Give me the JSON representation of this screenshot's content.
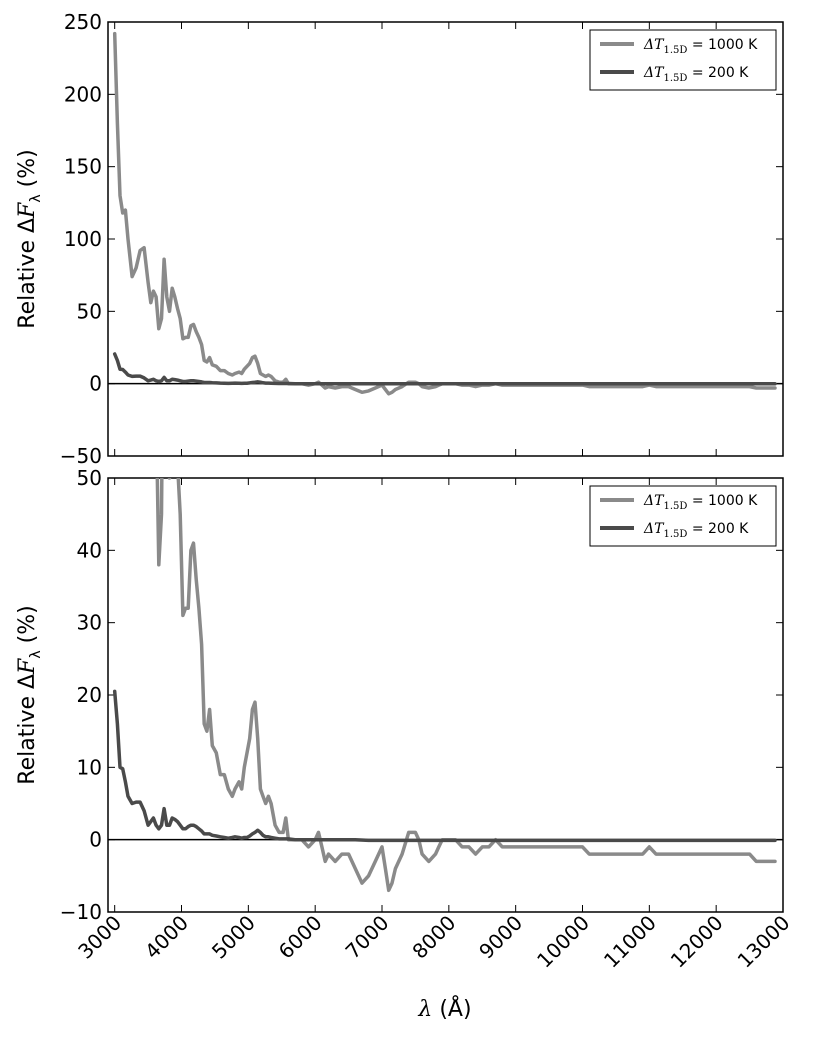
{
  "colors": {
    "series_1000": "#8a8a8a",
    "series_200": "#4a4a4a",
    "zero_line": "#000000"
  },
  "chart_data": [
    {
      "type": "line",
      "panel": "top",
      "ylabel": "Relative ΔFλ (%)",
      "xlabel": "",
      "xlim": [
        2900,
        13000
      ],
      "ylim": [
        -50,
        250
      ],
      "yticks": [
        -50,
        0,
        50,
        100,
        150,
        200,
        250
      ],
      "legend_position": "top-right",
      "series": [
        {
          "name": "ΔT1.5D = 1000 K",
          "values_x": [
            3000,
            3040,
            3080,
            3120,
            3160,
            3200,
            3260,
            3320,
            3380,
            3440,
            3500,
            3540,
            3580,
            3620,
            3660,
            3700,
            3740,
            3780,
            3820,
            3860,
            3900,
            3940,
            3980,
            4020,
            4060,
            4100,
            4140,
            4180,
            4220,
            4260,
            4300,
            4340,
            4380,
            4420,
            4460,
            4520,
            4580,
            4640,
            4700,
            4760,
            4800,
            4860,
            4900,
            4940,
            4980,
            5020,
            5060,
            5100,
            5140,
            5180,
            5220,
            5260,
            5300,
            5340,
            5400,
            5460,
            5520,
            5560,
            5600,
            5700,
            5800,
            5900,
            6000,
            6050,
            6100,
            6150,
            6200,
            6300,
            6400,
            6500,
            6600,
            6700,
            6800,
            6900,
            7000,
            7050,
            7100,
            7150,
            7200,
            7300,
            7400,
            7500,
            7550,
            7600,
            7700,
            7800,
            7850,
            7900,
            8000,
            8100,
            8200,
            8300,
            8400,
            8500,
            8600,
            8700,
            8800,
            8900,
            9000,
            9100,
            9200,
            9300,
            9400,
            9500,
            9600,
            9700,
            9800,
            9900,
            10000,
            10100,
            10200,
            10300,
            10400,
            10500,
            10600,
            10700,
            10800,
            10900,
            11000,
            11100,
            11200,
            11300,
            11400,
            11500,
            11600,
            11700,
            11800,
            11900,
            12000,
            12100,
            12200,
            12300,
            12400,
            12500,
            12600,
            12700,
            12800,
            12880
          ],
          "values_y": [
            242,
            180,
            130,
            118,
            120,
            100,
            74,
            80,
            92,
            94,
            70,
            56,
            64,
            60,
            38,
            45,
            86,
            60,
            50,
            66,
            60,
            52,
            45,
            31,
            32,
            32,
            40,
            41,
            36,
            32,
            27,
            16,
            15,
            18,
            13,
            12,
            9,
            9,
            7,
            6,
            7,
            8,
            7,
            10,
            12,
            14,
            18,
            19,
            14,
            7,
            6,
            5,
            6,
            5,
            2,
            1,
            1,
            3,
            0,
            0,
            0,
            -1,
            0,
            1,
            -1,
            -3,
            -2,
            -3,
            -2,
            -2,
            -4,
            -6,
            -5,
            -3,
            -1,
            -4,
            -7,
            -6,
            -4,
            -2,
            1,
            1,
            0,
            -2,
            -3,
            -2,
            -1,
            0,
            0,
            0,
            -1,
            -1,
            -2,
            -1,
            -1,
            0,
            -1,
            -1,
            -1,
            -1,
            -1,
            -1,
            -1,
            -1,
            -1,
            -1,
            -1,
            -1,
            -1,
            -2,
            -2,
            -2,
            -2,
            -2,
            -2,
            -2,
            -2,
            -2,
            -1,
            -2,
            -2,
            -2,
            -2,
            -2,
            -2,
            -2,
            -2,
            -2,
            -2,
            -2,
            -2,
            -2,
            -2,
            -2,
            -3,
            -3,
            -3,
            -3
          ]
        },
        {
          "name": "ΔT1.5D = 200 K",
          "values_x": [
            3000,
            3040,
            3080,
            3120,
            3160,
            3200,
            3260,
            3320,
            3380,
            3440,
            3500,
            3540,
            3580,
            3620,
            3660,
            3700,
            3740,
            3780,
            3820,
            3860,
            3900,
            3940,
            3980,
            4020,
            4060,
            4100,
            4140,
            4180,
            4220,
            4260,
            4300,
            4340,
            4380,
            4420,
            4460,
            4520,
            4580,
            4640,
            4700,
            4760,
            4800,
            4860,
            4900,
            4940,
            4980,
            5020,
            5060,
            5100,
            5140,
            5180,
            5220,
            5260,
            5300,
            5340,
            5400,
            5460,
            5520,
            5560,
            5600,
            5700,
            5800,
            5900,
            6000,
            6100,
            6200,
            6400,
            6600,
            6800,
            7000,
            7200,
            7400,
            7600,
            7800,
            8000,
            8500,
            9000,
            9500,
            10000,
            10500,
            11000,
            11500,
            12000,
            12500,
            12880
          ],
          "values_y": [
            20.5,
            16,
            10,
            9.8,
            8,
            6,
            5,
            5.2,
            5.2,
            4,
            2,
            2.5,
            3,
            2,
            1.5,
            2,
            4.3,
            2,
            2,
            3,
            2.8,
            2.5,
            2,
            1.5,
            1.5,
            1.8,
            2,
            2,
            1.8,
            1.5,
            1.2,
            0.8,
            0.8,
            0.8,
            0.6,
            0.5,
            0.4,
            0.3,
            0.2,
            0.3,
            0.4,
            0.3,
            0.2,
            0.3,
            0.3,
            0.5,
            0.8,
            1,
            1.3,
            1,
            0.6,
            0.4,
            0.4,
            0.3,
            0.2,
            0.1,
            0.1,
            0.1,
            0.1,
            0,
            0,
            0,
            0,
            0,
            0,
            0,
            0,
            -0.1,
            -0.1,
            -0.1,
            -0.1,
            -0.1,
            -0.1,
            -0.1,
            -0.1,
            -0.1,
            -0.1,
            -0.1,
            -0.1,
            -0.1,
            -0.1,
            -0.1,
            -0.1,
            -0.1
          ]
        }
      ]
    },
    {
      "type": "line",
      "panel": "bottom",
      "ylabel": "Relative ΔFλ (%)",
      "xlabel": "λ (Å)",
      "xlim": [
        2900,
        13000
      ],
      "ylim": [
        -10,
        50
      ],
      "yticks": [
        -10,
        0,
        10,
        20,
        30,
        40,
        50
      ],
      "xticks": [
        3000,
        4000,
        5000,
        6000,
        7000,
        8000,
        9000,
        10000,
        11000,
        12000,
        13000
      ],
      "legend_position": "top-right",
      "series": [
        {
          "name": "ΔT1.5D = 1000 K",
          "values_x": [
            3000,
            3040,
            3080,
            3120,
            3160,
            3200,
            3260,
            3320,
            3380,
            3440,
            3500,
            3540,
            3580,
            3620,
            3660,
            3700,
            3740,
            3780,
            3820,
            3860,
            3900,
            3940,
            3980,
            4020,
            4060,
            4100,
            4140,
            4180,
            4220,
            4260,
            4300,
            4340,
            4380,
            4420,
            4460,
            4520,
            4580,
            4640,
            4700,
            4760,
            4800,
            4860,
            4900,
            4940,
            4980,
            5020,
            5060,
            5100,
            5140,
            5180,
            5220,
            5260,
            5300,
            5340,
            5400,
            5460,
            5520,
            5560,
            5600,
            5700,
            5800,
            5900,
            6000,
            6050,
            6100,
            6150,
            6200,
            6300,
            6400,
            6500,
            6600,
            6700,
            6800,
            6900,
            7000,
            7050,
            7100,
            7150,
            7200,
            7300,
            7400,
            7500,
            7550,
            7600,
            7700,
            7800,
            7850,
            7900,
            8000,
            8100,
            8200,
            8300,
            8400,
            8500,
            8600,
            8700,
            8800,
            8900,
            9000,
            9100,
            9200,
            9300,
            9400,
            9500,
            9600,
            9700,
            9800,
            9900,
            10000,
            10100,
            10200,
            10300,
            10400,
            10500,
            10600,
            10700,
            10800,
            10900,
            11000,
            11100,
            11200,
            11300,
            11400,
            11500,
            11600,
            11700,
            11800,
            11900,
            12000,
            12100,
            12200,
            12300,
            12400,
            12500,
            12600,
            12700,
            12800,
            12880
          ],
          "values_y": [
            242,
            180,
            130,
            118,
            120,
            100,
            74,
            80,
            92,
            94,
            70,
            56,
            64,
            60,
            38,
            45,
            86,
            60,
            50,
            66,
            60,
            52,
            45,
            31,
            32,
            32,
            40,
            41,
            36,
            32,
            27,
            16,
            15,
            18,
            13,
            12,
            9,
            9,
            7,
            6,
            7,
            8,
            7,
            10,
            12,
            14,
            18,
            19,
            14,
            7,
            6,
            5,
            6,
            5,
            2,
            1,
            1,
            3,
            0,
            0,
            0,
            -1,
            0,
            1,
            -1,
            -3,
            -2,
            -3,
            -2,
            -2,
            -4,
            -6,
            -5,
            -3,
            -1,
            -4,
            -7,
            -6,
            -4,
            -2,
            1,
            1,
            0,
            -2,
            -3,
            -2,
            -1,
            0,
            0,
            0,
            -1,
            -1,
            -2,
            -1,
            -1,
            0,
            -1,
            -1,
            -1,
            -1,
            -1,
            -1,
            -1,
            -1,
            -1,
            -1,
            -1,
            -1,
            -1,
            -2,
            -2,
            -2,
            -2,
            -2,
            -2,
            -2,
            -2,
            -2,
            -1,
            -2,
            -2,
            -2,
            -2,
            -2,
            -2,
            -2,
            -2,
            -2,
            -2,
            -2,
            -2,
            -2,
            -2,
            -2,
            -3,
            -3,
            -3,
            -3
          ]
        },
        {
          "name": "ΔT1.5D = 200 K",
          "values_x": [
            3000,
            3040,
            3080,
            3120,
            3160,
            3200,
            3260,
            3320,
            3380,
            3440,
            3500,
            3540,
            3580,
            3620,
            3660,
            3700,
            3740,
            3780,
            3820,
            3860,
            3900,
            3940,
            3980,
            4020,
            4060,
            4100,
            4140,
            4180,
            4220,
            4260,
            4300,
            4340,
            4380,
            4420,
            4460,
            4520,
            4580,
            4640,
            4700,
            4760,
            4800,
            4860,
            4900,
            4940,
            4980,
            5020,
            5060,
            5100,
            5140,
            5180,
            5220,
            5260,
            5300,
            5340,
            5400,
            5460,
            5520,
            5560,
            5600,
            5700,
            5800,
            5900,
            6000,
            6100,
            6200,
            6400,
            6600,
            6800,
            7000,
            7200,
            7400,
            7600,
            7800,
            8000,
            8500,
            9000,
            9500,
            10000,
            10500,
            11000,
            11500,
            12000,
            12500,
            12880
          ],
          "values_y": [
            20.5,
            16,
            10,
            9.8,
            8,
            6,
            5,
            5.2,
            5.2,
            4,
            2,
            2.5,
            3,
            2,
            1.5,
            2,
            4.3,
            2,
            2,
            3,
            2.8,
            2.5,
            2,
            1.5,
            1.5,
            1.8,
            2,
            2,
            1.8,
            1.5,
            1.2,
            0.8,
            0.8,
            0.8,
            0.6,
            0.5,
            0.4,
            0.3,
            0.2,
            0.3,
            0.4,
            0.3,
            0.2,
            0.3,
            0.3,
            0.5,
            0.8,
            1,
            1.3,
            1,
            0.6,
            0.4,
            0.4,
            0.3,
            0.2,
            0.1,
            0.1,
            0.1,
            0.1,
            0,
            0,
            0,
            0,
            0,
            0,
            0,
            0,
            -0.1,
            -0.1,
            -0.1,
            -0.1,
            -0.1,
            -0.1,
            -0.1,
            -0.1,
            -0.1,
            -0.1,
            -0.1,
            -0.1,
            -0.1,
            -0.1,
            -0.1,
            -0.1,
            -0.1
          ]
        }
      ]
    }
  ],
  "legend": {
    "item1_unit": "= 1000 K",
    "item2_unit": "= 200 K",
    "symbol": "ΔT",
    "subscript": "1.5D"
  },
  "labels": {
    "ylabel_prefix": "Relative Δ",
    "ylabel_var": "F",
    "ylabel_sub": "λ",
    "ylabel_suffix": " (%)",
    "xlabel_var": "λ",
    "xlabel_suffix": " (Å)"
  }
}
